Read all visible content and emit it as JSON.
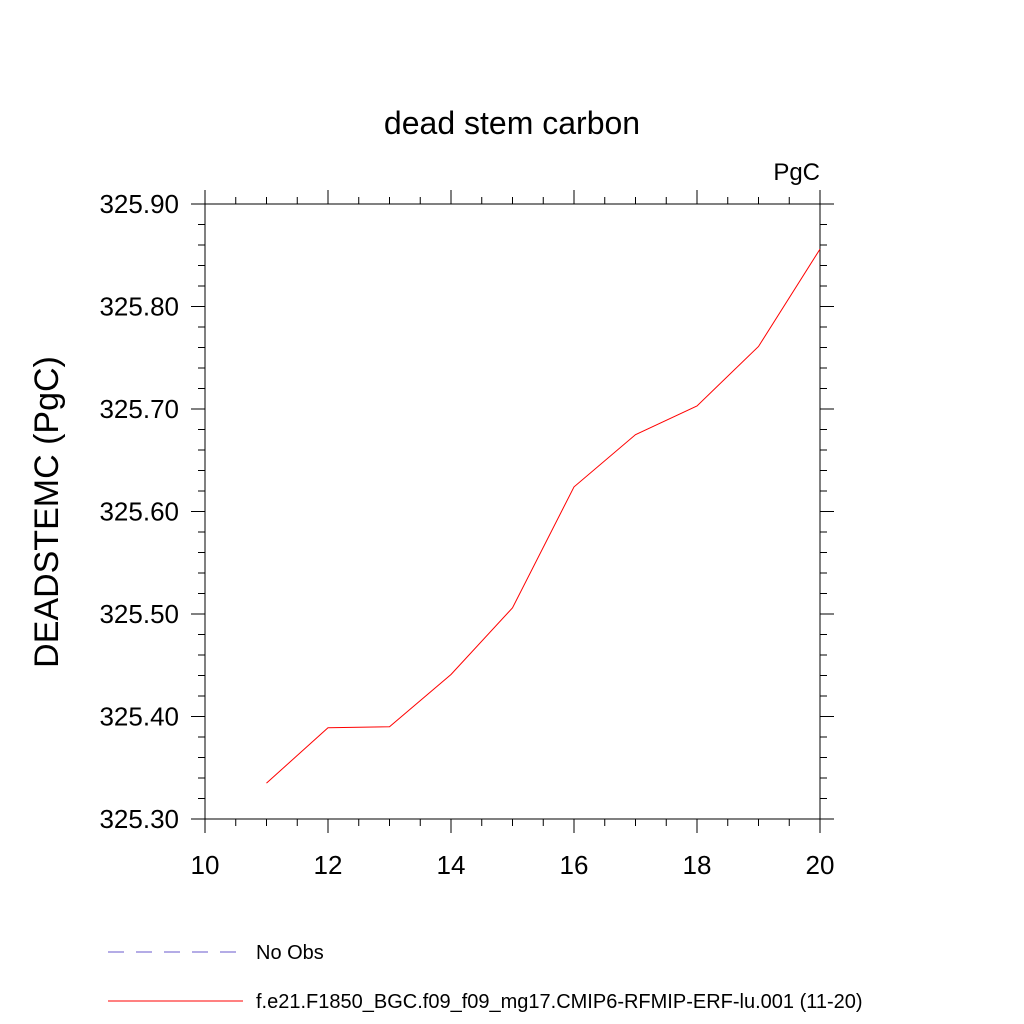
{
  "chart_data": {
    "type": "line",
    "title": "dead stem carbon",
    "units": "PgC",
    "xlabel": "",
    "ylabel": "DEADSTEMC  (PgC)",
    "xlim": [
      10,
      20
    ],
    "ylim": [
      325.3,
      325.9
    ],
    "xticks": [
      "10",
      "12",
      "14",
      "16",
      "18",
      "20"
    ],
    "yticks": [
      "325.30",
      "325.40",
      "325.50",
      "325.60",
      "325.70",
      "325.80",
      "325.90"
    ],
    "grid": false,
    "legend_position": "bottom-left",
    "series": [
      {
        "name": "f.e21.F1850_BGC.f09_f09_mg17.CMIP6-RFMIP-ERF-lu.001 (11-20)",
        "color": "#ff0000",
        "dash": "solid",
        "x": [
          11,
          12,
          13,
          14,
          15,
          16,
          17,
          18,
          19,
          20
        ],
        "y": [
          325.335,
          325.389,
          325.39,
          325.441,
          325.506,
          325.624,
          325.675,
          325.703,
          325.761,
          325.856
        ]
      }
    ],
    "legend": [
      {
        "label": "No Obs",
        "color": "#6a5acd",
        "dash": "dashed"
      },
      {
        "label": "f.e21.F1850_BGC.f09_f09_mg17.CMIP6-RFMIP-ERF-lu.001 (11-20)",
        "color": "#ff0000",
        "dash": "solid"
      }
    ]
  }
}
